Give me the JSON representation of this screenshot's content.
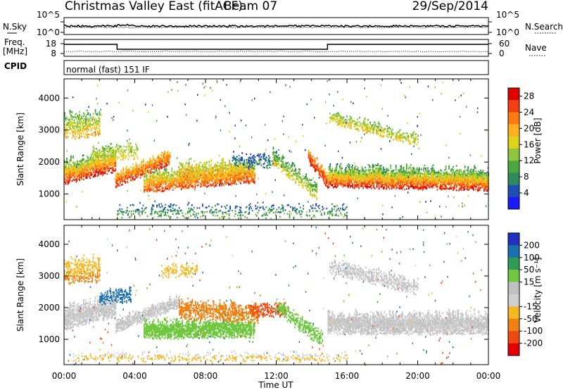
{
  "header": {
    "radar": "Christmas Valley East (fitACF)",
    "beam": "Beam 07",
    "date": "29/Sep/2014"
  },
  "aux": {
    "nsky_label": "N.Sky",
    "nsky_ticks": [
      "10^5",
      "10^0"
    ],
    "nsearch_label": "N.Search",
    "nsearch_ticks": [
      "10^5",
      "10^0"
    ],
    "freq_label_1": "Freq.",
    "freq_label_2": "[MHz]",
    "freq_ticks": [
      "18",
      "8"
    ],
    "nave_label": "Nave",
    "nave_ticks": [
      "60",
      "0"
    ],
    "cpid_label": "CPID",
    "cpid_value": "normal (fast) 151 IF"
  },
  "colors": {
    "power": [
      "#1a1aff",
      "#1f4fb3",
      "#2e8a5c",
      "#4aa83d",
      "#8fc640",
      "#e0d31a",
      "#ffb020",
      "#ff7a10",
      "#f04010",
      "#e00000"
    ],
    "velocity": [
      "#2030c0",
      "#1c6fb0",
      "#2e9c55",
      "#70c840",
      "#c0c0c0",
      "#d0d0d0",
      "#f5b820",
      "#f08010",
      "#ee4a0f",
      "#e40000"
    ]
  },
  "chart_data": [
    {
      "type": "heatmap",
      "name": "power",
      "xlabel": "",
      "ylabel": "Slant Range [km]",
      "x_ticks": [
        "00:00",
        "04:00",
        "08:00",
        "12:00",
        "16:00",
        "20:00",
        "00:00"
      ],
      "x_range_hours": [
        0,
        24
      ],
      "y_ticks": [
        1000,
        2000,
        3000,
        4000
      ],
      "ylim": [
        200,
        4600
      ],
      "colorbar_label": "Power [dB]",
      "colorbar_ticks": [
        4,
        8,
        12,
        16,
        20,
        24,
        28
      ],
      "colorbar_range": [
        0,
        30
      ],
      "regions": [
        {
          "t0": 0.0,
          "t1": 2.9,
          "r0_start": 1300,
          "r0_end": 1700,
          "thick": 700,
          "v_bottom": 28,
          "v_top": 10,
          "density": 0.9
        },
        {
          "t0": 0.0,
          "t1": 2.0,
          "r0_start": 2700,
          "r0_end": 2800,
          "thick": 800,
          "v_bottom": 20,
          "v_top": 10,
          "density": 0.55
        },
        {
          "t0": 1.5,
          "t1": 4.2,
          "r0_start": 2000,
          "r0_end": 2100,
          "thick": 500,
          "v_bottom": 18,
          "v_top": 12,
          "density": 0.45
        },
        {
          "t0": 2.9,
          "t1": 6.0,
          "r0_start": 1200,
          "r0_end": 1900,
          "thick": 450,
          "v_bottom": 26,
          "v_top": 18,
          "density": 0.85
        },
        {
          "t0": 4.5,
          "t1": 10.8,
          "r0_start": 1050,
          "r0_end": 1350,
          "thick": 600,
          "v_bottom": 26,
          "v_top": 12,
          "density": 0.85
        },
        {
          "t0": 6.5,
          "t1": 10.8,
          "r0_start": 1500,
          "r0_end": 1500,
          "thick": 500,
          "v_bottom": 22,
          "v_top": 14,
          "density": 0.55
        },
        {
          "t0": 9.5,
          "t1": 12.0,
          "r0_start": 1800,
          "r0_end": 1800,
          "thick": 450,
          "v_bottom": 8,
          "v_top": 4,
          "density": 0.4
        },
        {
          "t0": 11.8,
          "t1": 14.3,
          "r0_start": 1900,
          "r0_end": 800,
          "thick": 500,
          "v_bottom": 18,
          "v_top": 8,
          "density": 0.6
        },
        {
          "t0": 13.8,
          "t1": 14.9,
          "r0_start": 1950,
          "r0_end": 1150,
          "thick": 450,
          "v_bottom": 28,
          "v_top": 20,
          "density": 0.85
        },
        {
          "t0": 14.9,
          "t1": 24.0,
          "r0_start": 1200,
          "r0_end": 1100,
          "thick": 650,
          "v_bottom": 28,
          "v_top": 8,
          "density": 0.95
        },
        {
          "t0": 15.0,
          "t1": 20.0,
          "r0_start": 3200,
          "r0_end": 2500,
          "thick": 350,
          "v_bottom": 18,
          "v_top": 12,
          "density": 0.55
        },
        {
          "t0": 3.0,
          "t1": 16.0,
          "r0_start": 250,
          "r0_end": 250,
          "thick": 400,
          "v_bottom": 12,
          "v_top": 4,
          "density": 0.25
        }
      ]
    },
    {
      "type": "heatmap",
      "name": "velocity",
      "xlabel": "Time UT",
      "ylabel": "Slant Range [km]",
      "x_ticks": [
        "00:00",
        "04:00",
        "08:00",
        "12:00",
        "16:00",
        "20:00",
        "00:00"
      ],
      "x_range_hours": [
        0,
        24
      ],
      "y_ticks": [
        1000,
        2000,
        3000,
        4000
      ],
      "ylim": [
        200,
        4600
      ],
      "colorbar_label": "Velocity [m s⁻¹]",
      "colorbar_ticks": [
        200,
        100,
        50,
        15,
        -15,
        -50,
        -100,
        -200
      ],
      "regions": [
        {
          "t0": 0.0,
          "t1": 2.9,
          "r0_start": 1300,
          "r0_end": 1700,
          "thick": 700,
          "v_bottom": 0,
          "v_top": 0,
          "density": 0.9
        },
        {
          "t0": 0.0,
          "t1": 2.0,
          "r0_start": 2700,
          "r0_end": 2800,
          "thick": 800,
          "v_bottom": -60,
          "v_top": -30,
          "density": 0.5
        },
        {
          "t0": 2.0,
          "t1": 3.8,
          "r0_start": 2100,
          "r0_end": 2150,
          "thick": 400,
          "v_bottom": 180,
          "v_top": 120,
          "density": 0.6
        },
        {
          "t0": 2.9,
          "t1": 6.5,
          "r0_start": 1200,
          "r0_end": 2000,
          "thick": 400,
          "v_bottom": 0,
          "v_top": 0,
          "density": 0.85
        },
        {
          "t0": 5.5,
          "t1": 7.5,
          "r0_start": 2950,
          "r0_end": 2950,
          "thick": 400,
          "v_bottom": -40,
          "v_top": -30,
          "density": 0.4
        },
        {
          "t0": 4.5,
          "t1": 10.8,
          "r0_start": 1000,
          "r0_end": 1050,
          "thick": 550,
          "v_bottom": 40,
          "v_top": 30,
          "density": 0.85
        },
        {
          "t0": 6.5,
          "t1": 11.0,
          "r0_start": 1650,
          "r0_end": 1500,
          "thick": 550,
          "v_bottom": -70,
          "v_top": -60,
          "density": 0.65
        },
        {
          "t0": 10.5,
          "t1": 12.5,
          "r0_start": 1700,
          "r0_end": 1700,
          "thick": 400,
          "v_bottom": -150,
          "v_top": -100,
          "density": 0.55
        },
        {
          "t0": 12.0,
          "t1": 14.6,
          "r0_start": 1800,
          "r0_end": 750,
          "thick": 450,
          "v_bottom": 40,
          "v_top": 30,
          "density": 0.6
        },
        {
          "t0": 14.9,
          "t1": 24.0,
          "r0_start": 1150,
          "r0_end": 1150,
          "thick": 650,
          "v_bottom": 0,
          "v_top": 0,
          "density": 0.95
        },
        {
          "t0": 15.0,
          "t1": 20.0,
          "r0_start": 3050,
          "r0_end": 2400,
          "thick": 450,
          "v_bottom": 0,
          "v_top": 0,
          "density": 0.65
        },
        {
          "t0": 0.5,
          "t1": 16.0,
          "r0_start": 300,
          "r0_end": 300,
          "thick": 250,
          "v_bottom": -40,
          "v_top": 0,
          "density": 0.25
        }
      ]
    }
  ]
}
